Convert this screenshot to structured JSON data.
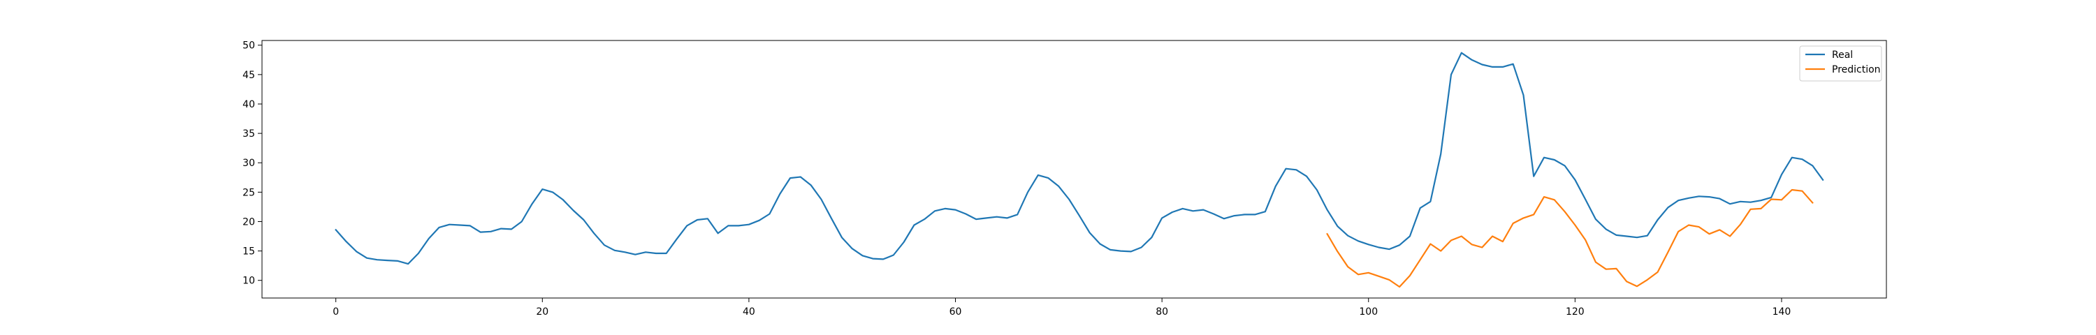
{
  "chart_data": {
    "type": "line",
    "title": "",
    "xlabel": "",
    "ylabel": "",
    "xlim": [
      -7.15,
      150.15
    ],
    "ylim": [
      7.0,
      50.8
    ],
    "xticks": [
      0,
      20,
      40,
      60,
      80,
      100,
      120,
      140
    ],
    "xtick_labels": [
      "0",
      "20",
      "40",
      "60",
      "80",
      "100",
      "120",
      "140"
    ],
    "yticks": [
      10,
      15,
      20,
      25,
      30,
      35,
      40,
      45,
      50
    ],
    "ytick_labels": [
      "10",
      "15",
      "20",
      "25",
      "30",
      "35",
      "40",
      "45",
      "50"
    ],
    "grid": false,
    "legend_position": "top-right",
    "series": [
      {
        "name": "Real",
        "color": "#1f77b4",
        "x_start": 0,
        "values": [
          18.6,
          16.6,
          14.9,
          13.8,
          13.5,
          13.4,
          13.3,
          12.8,
          14.6,
          17.1,
          19.0,
          19.5,
          19.4,
          19.3,
          18.2,
          18.3,
          18.8,
          18.7,
          20.0,
          23.0,
          25.5,
          25.0,
          23.7,
          21.9,
          20.3,
          18.0,
          16.0,
          15.1,
          14.8,
          14.4,
          14.8,
          14.6,
          14.6,
          17.0,
          19.3,
          20.3,
          20.5,
          18.0,
          19.3,
          19.3,
          19.5,
          20.2,
          21.3,
          24.7,
          27.4,
          27.6,
          26.2,
          23.8,
          20.5,
          17.3,
          15.4,
          14.2,
          13.7,
          13.6,
          14.3,
          16.5,
          19.4,
          20.4,
          21.8,
          22.2,
          22.0,
          21.3,
          20.4,
          20.6,
          20.8,
          20.6,
          21.2,
          25.0,
          27.9,
          27.4,
          26.0,
          23.8,
          21.0,
          18.1,
          16.2,
          15.2,
          15.0,
          14.9,
          15.6,
          17.3,
          20.6,
          21.6,
          22.2,
          21.8,
          22.0,
          21.3,
          20.5,
          21.0,
          21.2,
          21.2,
          21.7,
          26.0,
          29.0,
          28.8,
          27.7,
          25.4,
          22.0,
          19.2,
          17.6,
          16.7,
          16.1,
          15.6,
          15.3,
          16.0,
          17.5,
          22.3,
          23.4,
          31.5,
          45.0,
          48.7,
          47.5,
          46.7,
          46.3,
          46.3,
          46.8,
          41.5,
          27.7,
          30.9,
          30.5,
          29.5,
          27.1,
          23.8,
          20.4,
          18.7,
          17.7,
          17.5,
          17.3,
          17.6,
          20.3,
          22.4,
          23.6,
          24.0,
          24.3,
          24.2,
          23.9,
          23.0,
          23.4,
          23.3,
          23.6,
          24.1,
          28.0,
          30.9,
          30.6,
          29.5,
          27.1
        ]
      },
      {
        "name": "Prediction",
        "color": "#ff7f0e",
        "x_start": 96,
        "values": [
          17.9,
          14.9,
          12.3,
          11.0,
          11.3,
          10.7,
          10.1,
          8.9,
          10.8,
          13.5,
          16.2,
          15.0,
          16.8,
          17.5,
          16.1,
          15.6,
          17.5,
          16.6,
          19.7,
          20.6,
          21.2,
          24.2,
          23.7,
          21.7,
          19.4,
          16.9,
          13.1,
          11.9,
          12.0,
          9.8,
          9.0,
          10.1,
          11.4,
          14.8,
          18.3,
          19.4,
          19.1,
          17.9,
          18.6,
          17.5,
          19.5,
          22.1,
          22.2,
          23.8,
          23.7,
          25.4,
          25.2,
          23.2
        ]
      }
    ]
  }
}
